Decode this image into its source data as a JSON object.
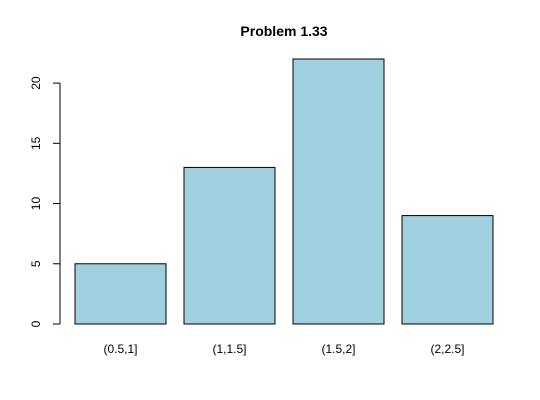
{
  "chart_data": {
    "type": "bar",
    "title": "Problem 1.33",
    "xlabel": "",
    "ylabel": "",
    "categories": [
      "(0.5,1]",
      "(1,1.5]",
      "(1.5,2]",
      "(2,2.5]"
    ],
    "values": [
      5,
      13,
      22,
      9
    ],
    "ylim": [
      0,
      22
    ],
    "yticks": [
      0,
      5,
      10,
      15,
      20
    ],
    "bar_color": "#a0d0e0",
    "grid": false,
    "legend": "none"
  }
}
